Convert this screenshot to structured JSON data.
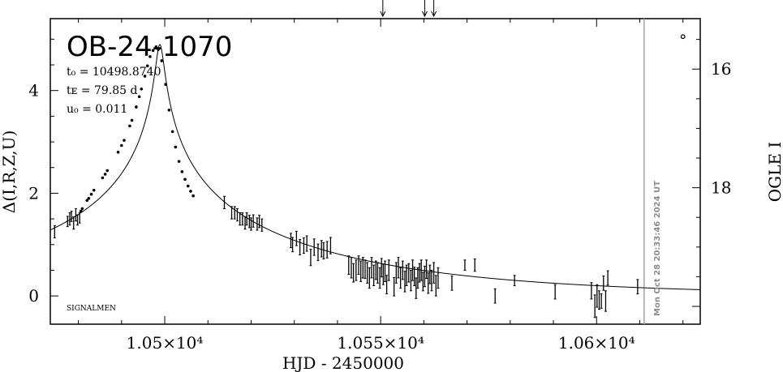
{
  "chart_data": {
    "type": "scatter",
    "title": "OB-24-1070",
    "xlabel": "HJD - 2450000",
    "ylabel": "Δ(I,R,Z,U)",
    "ylabel_right": "OGLE I",
    "xlim": [
      10473.5,
      10624
    ],
    "ylim": [
      -0.55,
      5.4
    ],
    "y2lim": [
      20.3,
      15.15
    ],
    "x_ticks": [
      10500,
      10550,
      10600
    ],
    "x_tick_labels": [
      "1.05×10⁴",
      "1.055×10⁴",
      "1.06×10⁴"
    ],
    "y_ticks": [
      0,
      2,
      4
    ],
    "y_tick_labels": [
      "0",
      "2",
      "4"
    ],
    "y2_ticks": [
      16,
      18
    ],
    "y2_tick_labels": [
      "16",
      "18"
    ],
    "grid": false,
    "parameters": {
      "t0": "t₀ = 10498.8740",
      "tE": "tᴇ = 79.85  d",
      "u0": "u₀ = 0.011"
    },
    "observer_label": "SIGNALMEN",
    "timestamp": "Mon Oct 28 20:33:46 2024 UT",
    "current_time_hjd": 10611,
    "arrow_markers_hjd": [
      10550.5,
      10560.2,
      10562.3
    ],
    "offchart_point": {
      "x": 10620,
      "y": 5.05
    },
    "model": {
      "t0": 10498.874,
      "tE": 79.85,
      "u0": 0.011,
      "baseline_x_start": 10473.5
    },
    "series": [
      {
        "marker": "dot",
        "x": [
          10480.6,
          10480.9,
          10482.0,
          10482.4,
          10483.0,
          10483.6,
          10485.6,
          10486.2,
          10486.7,
          10489.2,
          10490.0,
          10490.6,
          10491.9,
          10492.4,
          10493.4,
          10494.1,
          10494.6,
          10495.4,
          10496.0,
          10496.6,
          10497.3,
          10498.0,
          10498.5,
          10499.3,
          10500.2,
          10501.0,
          10501.8,
          10502.5,
          10503.3,
          10504.0,
          10504.7,
          10505.4,
          10506.0,
          10506.6
        ],
        "y": [
          1.65,
          1.7,
          1.86,
          1.9,
          1.98,
          2.06,
          2.3,
          2.37,
          2.44,
          2.8,
          2.93,
          3.03,
          3.31,
          3.42,
          3.68,
          3.88,
          4.03,
          4.28,
          4.48,
          4.66,
          4.78,
          4.85,
          4.8,
          4.58,
          4.12,
          3.62,
          3.2,
          2.9,
          2.62,
          2.42,
          2.27,
          2.14,
          2.04,
          1.95
        ]
      },
      {
        "marker": "errorbar",
        "x": [
          10474.5,
          10477.5,
          10478.0,
          10478.4,
          10478.9,
          10479.4,
          10479.8,
          10480.3,
          10513.8,
          10515.5,
          10516.2,
          10516.8,
          10517.4,
          10518.0,
          10518.6,
          10519.0,
          10519.6,
          10520.0,
          10520.5,
          10521.4,
          10521.9,
          10522.5,
          10529.2,
          10529.6,
          10530.5,
          10531.3,
          10532.2,
          10532.9,
          10533.8,
          10534.6,
          10535.5,
          10536.3,
          10536.8,
          10537.6,
          10538.4,
          10542.6,
          10543.2,
          10543.7,
          10544.3,
          10544.9,
          10545.4,
          10545.9,
          10546.4,
          10546.9,
          10547.4,
          10547.9,
          10548.4,
          10548.9,
          10549.3,
          10549.8,
          10550.2,
          10550.6,
          10551.0,
          10551.4,
          10551.9,
          10553.1,
          10553.6,
          10554.1,
          10554.6,
          10555.1,
          10555.6,
          10556.0,
          10556.5,
          10557.0,
          10557.4,
          10557.8,
          10558.2,
          10558.6,
          10559.0,
          10559.4,
          10559.8,
          10560.2,
          10560.6,
          10561.0,
          10561.4,
          10561.8,
          10562.3,
          10562.8,
          10563.3,
          10566.5,
          10569.5,
          10571.8,
          10576.5,
          10581.0,
          10590.4,
          10598.8,
          10599.6,
          10600.1,
          10600.6,
          10601.1,
          10601.6,
          10602.1,
          10602.6,
          10609.5
        ],
        "y": [
          1.25,
          1.45,
          1.5,
          1.55,
          1.42,
          1.58,
          1.48,
          1.52,
          1.82,
          1.62,
          1.62,
          1.58,
          1.5,
          1.5,
          1.42,
          1.5,
          1.45,
          1.4,
          1.46,
          1.4,
          1.45,
          1.38,
          1.08,
          1.0,
          1.12,
          0.95,
          0.98,
          1.02,
          0.75,
          0.95,
          0.85,
          0.92,
          0.88,
          0.9,
          0.98,
          0.6,
          0.55,
          0.45,
          0.5,
          0.6,
          0.48,
          0.55,
          0.52,
          0.45,
          0.35,
          0.55,
          0.4,
          0.5,
          0.45,
          0.35,
          0.55,
          0.42,
          0.48,
          0.22,
          0.5,
          0.18,
          0.45,
          0.55,
          0.35,
          0.5,
          0.28,
          0.4,
          0.45,
          0.3,
          0.5,
          0.38,
          0.15,
          0.35,
          0.45,
          0.5,
          0.28,
          0.38,
          0.52,
          0.25,
          0.42,
          0.3,
          0.45,
          0.2,
          0.35,
          0.25,
          0.6,
          0.6,
          0.0,
          0.3,
          0.08,
          0.1,
          -0.2,
          0.0,
          -0.08,
          -0.1,
          0.25,
          -0.1,
          0.35,
          0.18
        ],
        "err": [
          0.12,
          0.1,
          0.12,
          0.1,
          0.12,
          0.12,
          0.1,
          0.1,
          0.12,
          0.12,
          0.12,
          0.12,
          0.12,
          0.12,
          0.12,
          0.12,
          0.12,
          0.12,
          0.12,
          0.12,
          0.12,
          0.12,
          0.14,
          0.14,
          0.14,
          0.15,
          0.15,
          0.15,
          0.16,
          0.16,
          0.16,
          0.16,
          0.16,
          0.16,
          0.16,
          0.18,
          0.2,
          0.18,
          0.2,
          0.18,
          0.2,
          0.2,
          0.18,
          0.2,
          0.2,
          0.2,
          0.2,
          0.18,
          0.2,
          0.2,
          0.18,
          0.2,
          0.2,
          0.18,
          0.2,
          0.18,
          0.2,
          0.2,
          0.2,
          0.18,
          0.2,
          0.2,
          0.18,
          0.2,
          0.2,
          0.18,
          0.2,
          0.2,
          0.18,
          0.2,
          0.18,
          0.2,
          0.18,
          0.2,
          0.18,
          0.2,
          0.2,
          0.2,
          0.2,
          0.14,
          0.1,
          0.12,
          0.14,
          0.1,
          0.14,
          0.16,
          0.22,
          0.22,
          0.18,
          0.14,
          0.14,
          0.2,
          0.14,
          0.14
        ]
      }
    ]
  }
}
